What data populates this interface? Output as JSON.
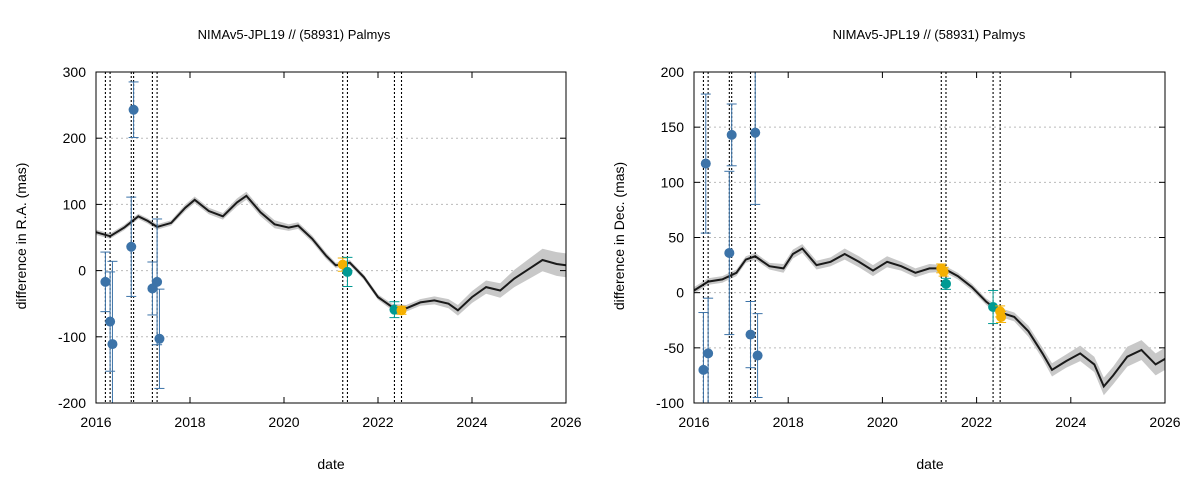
{
  "colors": {
    "model_line": "#1a1a1a",
    "model_band": "#c8c8c8",
    "obs_blue": "#3c73a8",
    "obs_teal": "#009a93",
    "obs_orange": "#f5b000",
    "grid": "#bbbbbb",
    "epoch_lines": "#000000"
  },
  "chart_data": [
    {
      "type": "scatter",
      "title": "NIMAv5-JPL19 // (58931) Palmys",
      "xlabel": "date",
      "ylabel": "difference in R.A. (mas)",
      "xlim": [
        2016,
        2026
      ],
      "ylim": [
        -200,
        300
      ],
      "x_ticks": [
        2016,
        2018,
        2020,
        2022,
        2024,
        2026
      ],
      "x_tick_labels": [
        "2016",
        "2018",
        "2020",
        "2022",
        "2024",
        "2026"
      ],
      "y_ticks": [
        -200,
        -100,
        0,
        100,
        200,
        300
      ],
      "y_tick_labels": [
        "-200",
        "-100",
        "0",
        "100",
        "200",
        "300"
      ],
      "grid": "horizontal dotted",
      "vertical_epoch_lines": [
        2016.2,
        2016.3,
        2016.75,
        2016.8,
        2017.2,
        2017.3,
        2021.25,
        2021.35,
        2022.35,
        2022.5
      ],
      "model": {
        "x": [
          2016.0,
          2016.3,
          2016.6,
          2016.9,
          2017.1,
          2017.3,
          2017.6,
          2017.9,
          2018.1,
          2018.4,
          2018.7,
          2019.0,
          2019.2,
          2019.5,
          2019.8,
          2020.1,
          2020.3,
          2020.6,
          2020.9,
          2021.1,
          2021.4,
          2021.7,
          2022.0,
          2022.3,
          2022.6,
          2022.9,
          2023.2,
          2023.5,
          2023.7,
          2024.0,
          2024.3,
          2024.6,
          2024.9,
          2025.2,
          2025.5,
          2025.8,
          2026.0
        ],
        "y": [
          58,
          52,
          65,
          82,
          75,
          66,
          72,
          95,
          107,
          90,
          82,
          103,
          113,
          88,
          70,
          65,
          68,
          48,
          22,
          8,
          12,
          -10,
          -40,
          -55,
          -57,
          -48,
          -45,
          -50,
          -60,
          -40,
          -25,
          -30,
          -12,
          2,
          16,
          10,
          8
        ],
        "band": [
          4,
          4,
          4,
          4,
          4,
          4,
          4,
          5,
          5,
          5,
          5,
          6,
          6,
          6,
          6,
          5,
          5,
          5,
          5,
          4,
          4,
          4,
          4,
          5,
          5,
          5,
          6,
          7,
          8,
          9,
          10,
          11,
          13,
          15,
          17,
          18,
          18
        ]
      },
      "observations": [
        {
          "x": 2016.2,
          "y": -17,
          "err": 45,
          "color": "blue"
        },
        {
          "x": 2016.3,
          "y": -77,
          "err": 75,
          "color": "blue"
        },
        {
          "x": 2016.35,
          "y": -111,
          "err": 125,
          "color": "blue"
        },
        {
          "x": 2016.75,
          "y": 36,
          "err": 75,
          "color": "blue"
        },
        {
          "x": 2016.8,
          "y": 243,
          "err": 42,
          "color": "blue"
        },
        {
          "x": 2017.2,
          "y": -27,
          "err": 40,
          "color": "blue"
        },
        {
          "x": 2017.3,
          "y": -17,
          "err": 95,
          "color": "blue"
        },
        {
          "x": 2017.35,
          "y": -103,
          "err": 75,
          "color": "blue"
        },
        {
          "x": 2021.25,
          "y": 9,
          "err": 10,
          "color": "orange"
        },
        {
          "x": 2021.35,
          "y": -2,
          "err": 22,
          "color": "teal"
        },
        {
          "x": 2022.35,
          "y": -59,
          "err": 12,
          "color": "teal"
        },
        {
          "x": 2022.5,
          "y": -60,
          "err": 6,
          "color": "orange"
        }
      ]
    },
    {
      "type": "scatter",
      "title": "NIMAv5-JPL19 // (58931) Palmys",
      "xlabel": "date",
      "ylabel": "difference in Dec. (mas)",
      "xlim": [
        2016,
        2026
      ],
      "ylim": [
        -100,
        200
      ],
      "x_ticks": [
        2016,
        2018,
        2020,
        2022,
        2024,
        2026
      ],
      "x_tick_labels": [
        "2016",
        "2018",
        "2020",
        "2022",
        "2024",
        "2026"
      ],
      "y_ticks": [
        -100,
        -50,
        0,
        50,
        100,
        150,
        200
      ],
      "y_tick_labels": [
        "-100",
        "-50",
        "0",
        "50",
        "100",
        "150",
        "200"
      ],
      "grid": "horizontal dotted",
      "vertical_epoch_lines": [
        2016.2,
        2016.3,
        2016.75,
        2016.8,
        2017.2,
        2017.3,
        2021.25,
        2021.35,
        2022.35,
        2022.5
      ],
      "model": {
        "x": [
          2016.0,
          2016.3,
          2016.6,
          2016.9,
          2017.1,
          2017.3,
          2017.6,
          2017.9,
          2018.1,
          2018.3,
          2018.6,
          2018.9,
          2019.2,
          2019.5,
          2019.8,
          2020.1,
          2020.4,
          2020.7,
          2021.0,
          2021.3,
          2021.6,
          2021.9,
          2022.2,
          2022.5,
          2022.8,
          2023.1,
          2023.4,
          2023.6,
          2023.9,
          2024.2,
          2024.5,
          2024.7,
          2024.9,
          2025.2,
          2025.5,
          2025.8,
          2026.0
        ],
        "y": [
          2,
          10,
          12,
          18,
          30,
          33,
          24,
          22,
          35,
          40,
          25,
          28,
          35,
          28,
          20,
          28,
          24,
          18,
          22,
          22,
          15,
          5,
          -8,
          -18,
          -22,
          -35,
          -55,
          -70,
          -62,
          -55,
          -65,
          -85,
          -75,
          -58,
          -52,
          -65,
          -60
        ],
        "band": [
          3,
          3,
          3,
          3,
          3,
          3,
          3,
          4,
          4,
          4,
          4,
          4,
          5,
          5,
          5,
          5,
          4,
          4,
          4,
          3,
          3,
          3,
          3,
          4,
          4,
          5,
          5,
          6,
          6,
          7,
          7,
          8,
          8,
          9,
          9,
          10,
          10
        ]
      },
      "observations": [
        {
          "x": 2016.2,
          "y": -70,
          "err": 52,
          "color": "blue"
        },
        {
          "x": 2016.25,
          "y": 117,
          "err": 63,
          "color": "blue"
        },
        {
          "x": 2016.3,
          "y": -55,
          "err": 50,
          "color": "blue"
        },
        {
          "x": 2016.75,
          "y": 36,
          "err": 74,
          "color": "blue"
        },
        {
          "x": 2016.8,
          "y": 143,
          "err": 28,
          "color": "blue"
        },
        {
          "x": 2017.2,
          "y": -38,
          "err": 30,
          "color": "blue"
        },
        {
          "x": 2017.3,
          "y": 145,
          "err": 65,
          "color": "blue"
        },
        {
          "x": 2017.35,
          "y": -57,
          "err": 38,
          "color": "blue"
        },
        {
          "x": 2021.25,
          "y": 22,
          "err": 4,
          "color": "orange"
        },
        {
          "x": 2021.3,
          "y": 19,
          "err": 4,
          "color": "orange"
        },
        {
          "x": 2021.35,
          "y": 8,
          "err": 5,
          "color": "teal"
        },
        {
          "x": 2022.35,
          "y": -13,
          "err": 15,
          "color": "teal"
        },
        {
          "x": 2022.5,
          "y": -17,
          "err": 5,
          "color": "orange"
        },
        {
          "x": 2022.52,
          "y": -22,
          "err": 5,
          "color": "orange"
        }
      ]
    }
  ]
}
